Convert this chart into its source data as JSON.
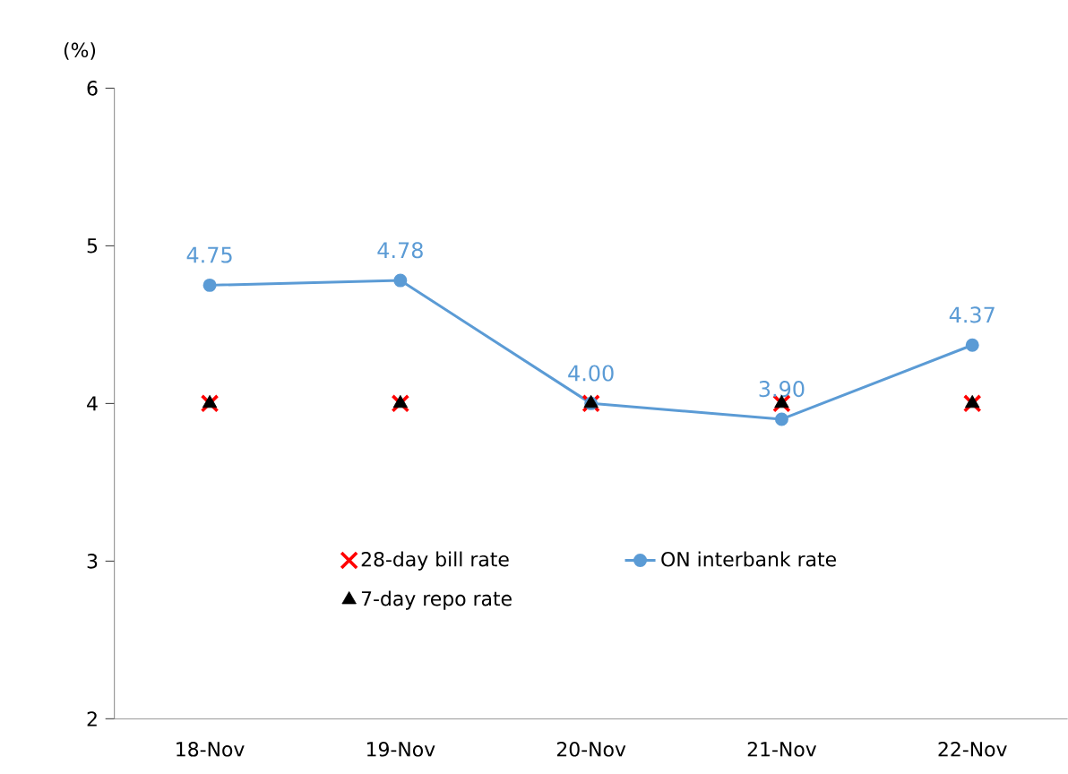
{
  "chart_data": {
    "type": "line",
    "ylabel": "(%)",
    "categories": [
      "18-Nov",
      "19-Nov",
      "20-Nov",
      "21-Nov",
      "22-Nov"
    ],
    "ylim": [
      2,
      6
    ],
    "yticks": [
      2,
      3,
      4,
      5,
      6
    ],
    "legend": "bottom",
    "series": [
      {
        "name": "28-day bill rate",
        "type": "scatter",
        "color": "#ff0000",
        "marker": "cross",
        "values": [
          4,
          4,
          4,
          4,
          4
        ]
      },
      {
        "name": "ON interbank rate",
        "color": "#5b9bd5",
        "marker": "circle",
        "line_style": "solid",
        "values": [
          4.75,
          4.78,
          4.0,
          3.9,
          4.37
        ],
        "value_labels": [
          "4.75",
          "4.78",
          "4.00",
          "3.90",
          "4.37"
        ]
      },
      {
        "name": "7-day repo rate",
        "type": "scatter",
        "color": "#000000",
        "marker": "triangle",
        "values": [
          4,
          4,
          4,
          4,
          4
        ]
      }
    ]
  }
}
